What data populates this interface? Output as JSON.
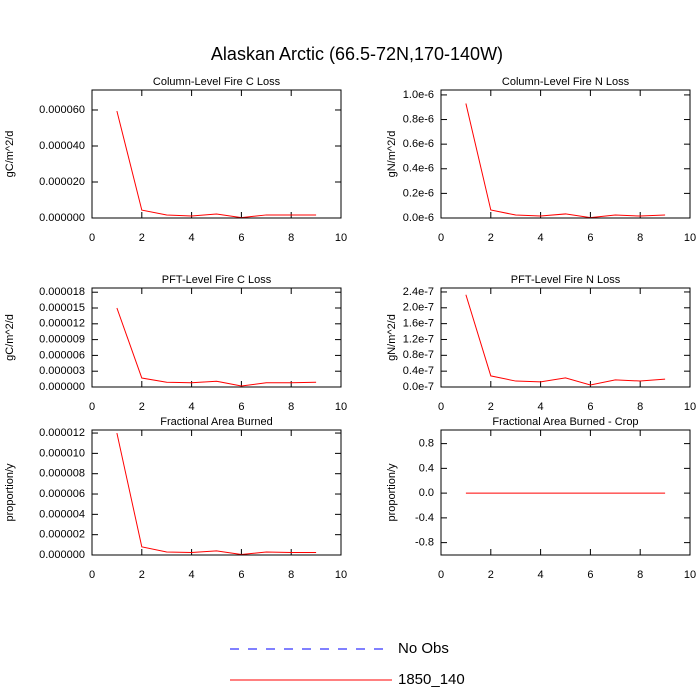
{
  "title": "Alaskan Arctic (66.5-72N,170-140W)",
  "legend": [
    {
      "name": "No Obs",
      "color": "#0000ff",
      "dash": true
    },
    {
      "name": "1850_140",
      "color": "#ff0000",
      "dash": false
    }
  ],
  "chart_data": [
    {
      "type": "line",
      "title": "Column-Level Fire C Loss",
      "y_label": "gC/m^2/d",
      "x": [
        1,
        2,
        3,
        4,
        5,
        6,
        7,
        8,
        9
      ],
      "color": "#ff0000",
      "values": [
        5.94e-05,
        4.4e-06,
        1.7e-06,
        1.1e-06,
        2.2e-06,
        2e-07,
        1.7e-06,
        1.7e-06,
        1.7e-06
      ],
      "xlim": [
        0,
        10
      ],
      "xticks": [
        0,
        2,
        4,
        6,
        8,
        10
      ],
      "ylim": [
        0,
        7.11e-05
      ],
      "yticks": [
        {
          "value": 0,
          "label": "0.000000"
        },
        {
          "value": 2e-05,
          "label": "0.000020"
        },
        {
          "value": 4e-05,
          "label": "0.000040"
        },
        {
          "value": 6e-05,
          "label": "0.000060"
        }
      ]
    },
    {
      "type": "line",
      "title": "Column-Level Fire N Loss",
      "y_label": "gN/m^2/d",
      "x": [
        1,
        2,
        3,
        4,
        5,
        6,
        7,
        8,
        9
      ],
      "color": "#ff0000",
      "values": [
        9.3e-07,
        6.5e-08,
        2.4e-08,
        1.6e-08,
        3.3e-08,
        3e-09,
        2.4e-08,
        1.6e-08,
        2.4e-08
      ],
      "xlim": [
        0,
        10
      ],
      "xticks": [
        0,
        2,
        4,
        6,
        8,
        10
      ],
      "ylim": [
        0,
        1.04e-06
      ],
      "yticks": [
        {
          "value": 0,
          "label": "0.0e-6"
        },
        {
          "value": 2e-07,
          "label": "0.2e-6"
        },
        {
          "value": 4e-07,
          "label": "0.4e-6"
        },
        {
          "value": 6e-07,
          "label": "0.6e-6"
        },
        {
          "value": 8e-07,
          "label": "0.8e-6"
        },
        {
          "value": 1e-06,
          "label": "1.0e-6"
        }
      ]
    },
    {
      "type": "line",
      "title": "PFT-Level Fire C Loss",
      "y_label": "gC/m^2/d",
      "x": [
        1,
        2,
        3,
        4,
        5,
        6,
        7,
        8,
        9
      ],
      "color": "#ff0000",
      "values": [
        1.5e-05,
        1.7e-06,
        9e-07,
        8e-07,
        1.1e-06,
        2e-07,
        8e-07,
        8e-07,
        9e-07
      ],
      "xlim": [
        0,
        10
      ],
      "xticks": [
        0,
        2,
        4,
        6,
        8,
        10
      ],
      "ylim": [
        0,
        1.88e-05
      ],
      "yticks": [
        {
          "value": 0,
          "label": "0.000000"
        },
        {
          "value": 3e-06,
          "label": "0.000003"
        },
        {
          "value": 6e-06,
          "label": "0.000006"
        },
        {
          "value": 9e-06,
          "label": "0.000009"
        },
        {
          "value": 1.2e-05,
          "label": "0.000012"
        },
        {
          "value": 1.5e-05,
          "label": "0.000015"
        },
        {
          "value": 1.8e-05,
          "label": "0.000018"
        }
      ]
    },
    {
      "type": "line",
      "title": "PFT-Level Fire N Loss",
      "y_label": "gN/m^2/d",
      "x": [
        1,
        2,
        3,
        4,
        5,
        6,
        7,
        8,
        9
      ],
      "color": "#ff0000",
      "values": [
        2.33e-07,
        2.8e-08,
        1.5e-08,
        1.3e-08,
        2.3e-08,
        5e-09,
        1.8e-08,
        1.5e-08,
        2e-08
      ],
      "xlim": [
        0,
        10
      ],
      "xticks": [
        0,
        2,
        4,
        6,
        8,
        10
      ],
      "ylim": [
        0,
        2.5e-07
      ],
      "yticks": [
        {
          "value": 0,
          "label": "0.0e-7"
        },
        {
          "value": 4e-08,
          "label": "0.4e-7"
        },
        {
          "value": 8e-08,
          "label": "0.8e-7"
        },
        {
          "value": 1.2e-07,
          "label": "1.2e-7"
        },
        {
          "value": 1.6e-07,
          "label": "1.6e-7"
        },
        {
          "value": 2e-07,
          "label": "2.0e-7"
        },
        {
          "value": 2.4e-07,
          "label": "2.4e-7"
        }
      ]
    },
    {
      "type": "line",
      "title": "Fractional Area Burned",
      "y_label": "proportion/y",
      "x": [
        1,
        2,
        3,
        4,
        5,
        6,
        7,
        8,
        9
      ],
      "color": "#ff0000",
      "values": [
        1.2e-05,
        8e-07,
        3e-07,
        2.5e-07,
        4e-07,
        5e-08,
        3e-07,
        2.5e-07,
        2.5e-07
      ],
      "xlim": [
        0,
        10
      ],
      "xticks": [
        0,
        2,
        4,
        6,
        8,
        10
      ],
      "ylim": [
        0,
        1.23e-05
      ],
      "yticks": [
        {
          "value": 0,
          "label": "0.000000"
        },
        {
          "value": 2e-06,
          "label": "0.000002"
        },
        {
          "value": 4e-06,
          "label": "0.000004"
        },
        {
          "value": 6e-06,
          "label": "0.000006"
        },
        {
          "value": 8e-06,
          "label": "0.000008"
        },
        {
          "value": 1e-05,
          "label": "0.000010"
        },
        {
          "value": 1.2e-05,
          "label": "0.000012"
        }
      ]
    },
    {
      "type": "line",
      "title": "Fractional Area Burned - Crop",
      "y_label": "proportion/y",
      "x": [
        1,
        2,
        3,
        4,
        5,
        6,
        7,
        8,
        9
      ],
      "color": "#ff0000",
      "values": [
        0,
        0,
        0,
        0,
        0,
        0,
        0,
        0,
        0
      ],
      "xlim": [
        0,
        10
      ],
      "xticks": [
        0,
        2,
        4,
        6,
        8,
        10
      ],
      "ylim": [
        -1.0,
        1.02
      ],
      "yticks": [
        -0.8,
        -0.4,
        {
          "value": 0,
          "label": "0.0"
        },
        0.4,
        0.8
      ]
    }
  ]
}
